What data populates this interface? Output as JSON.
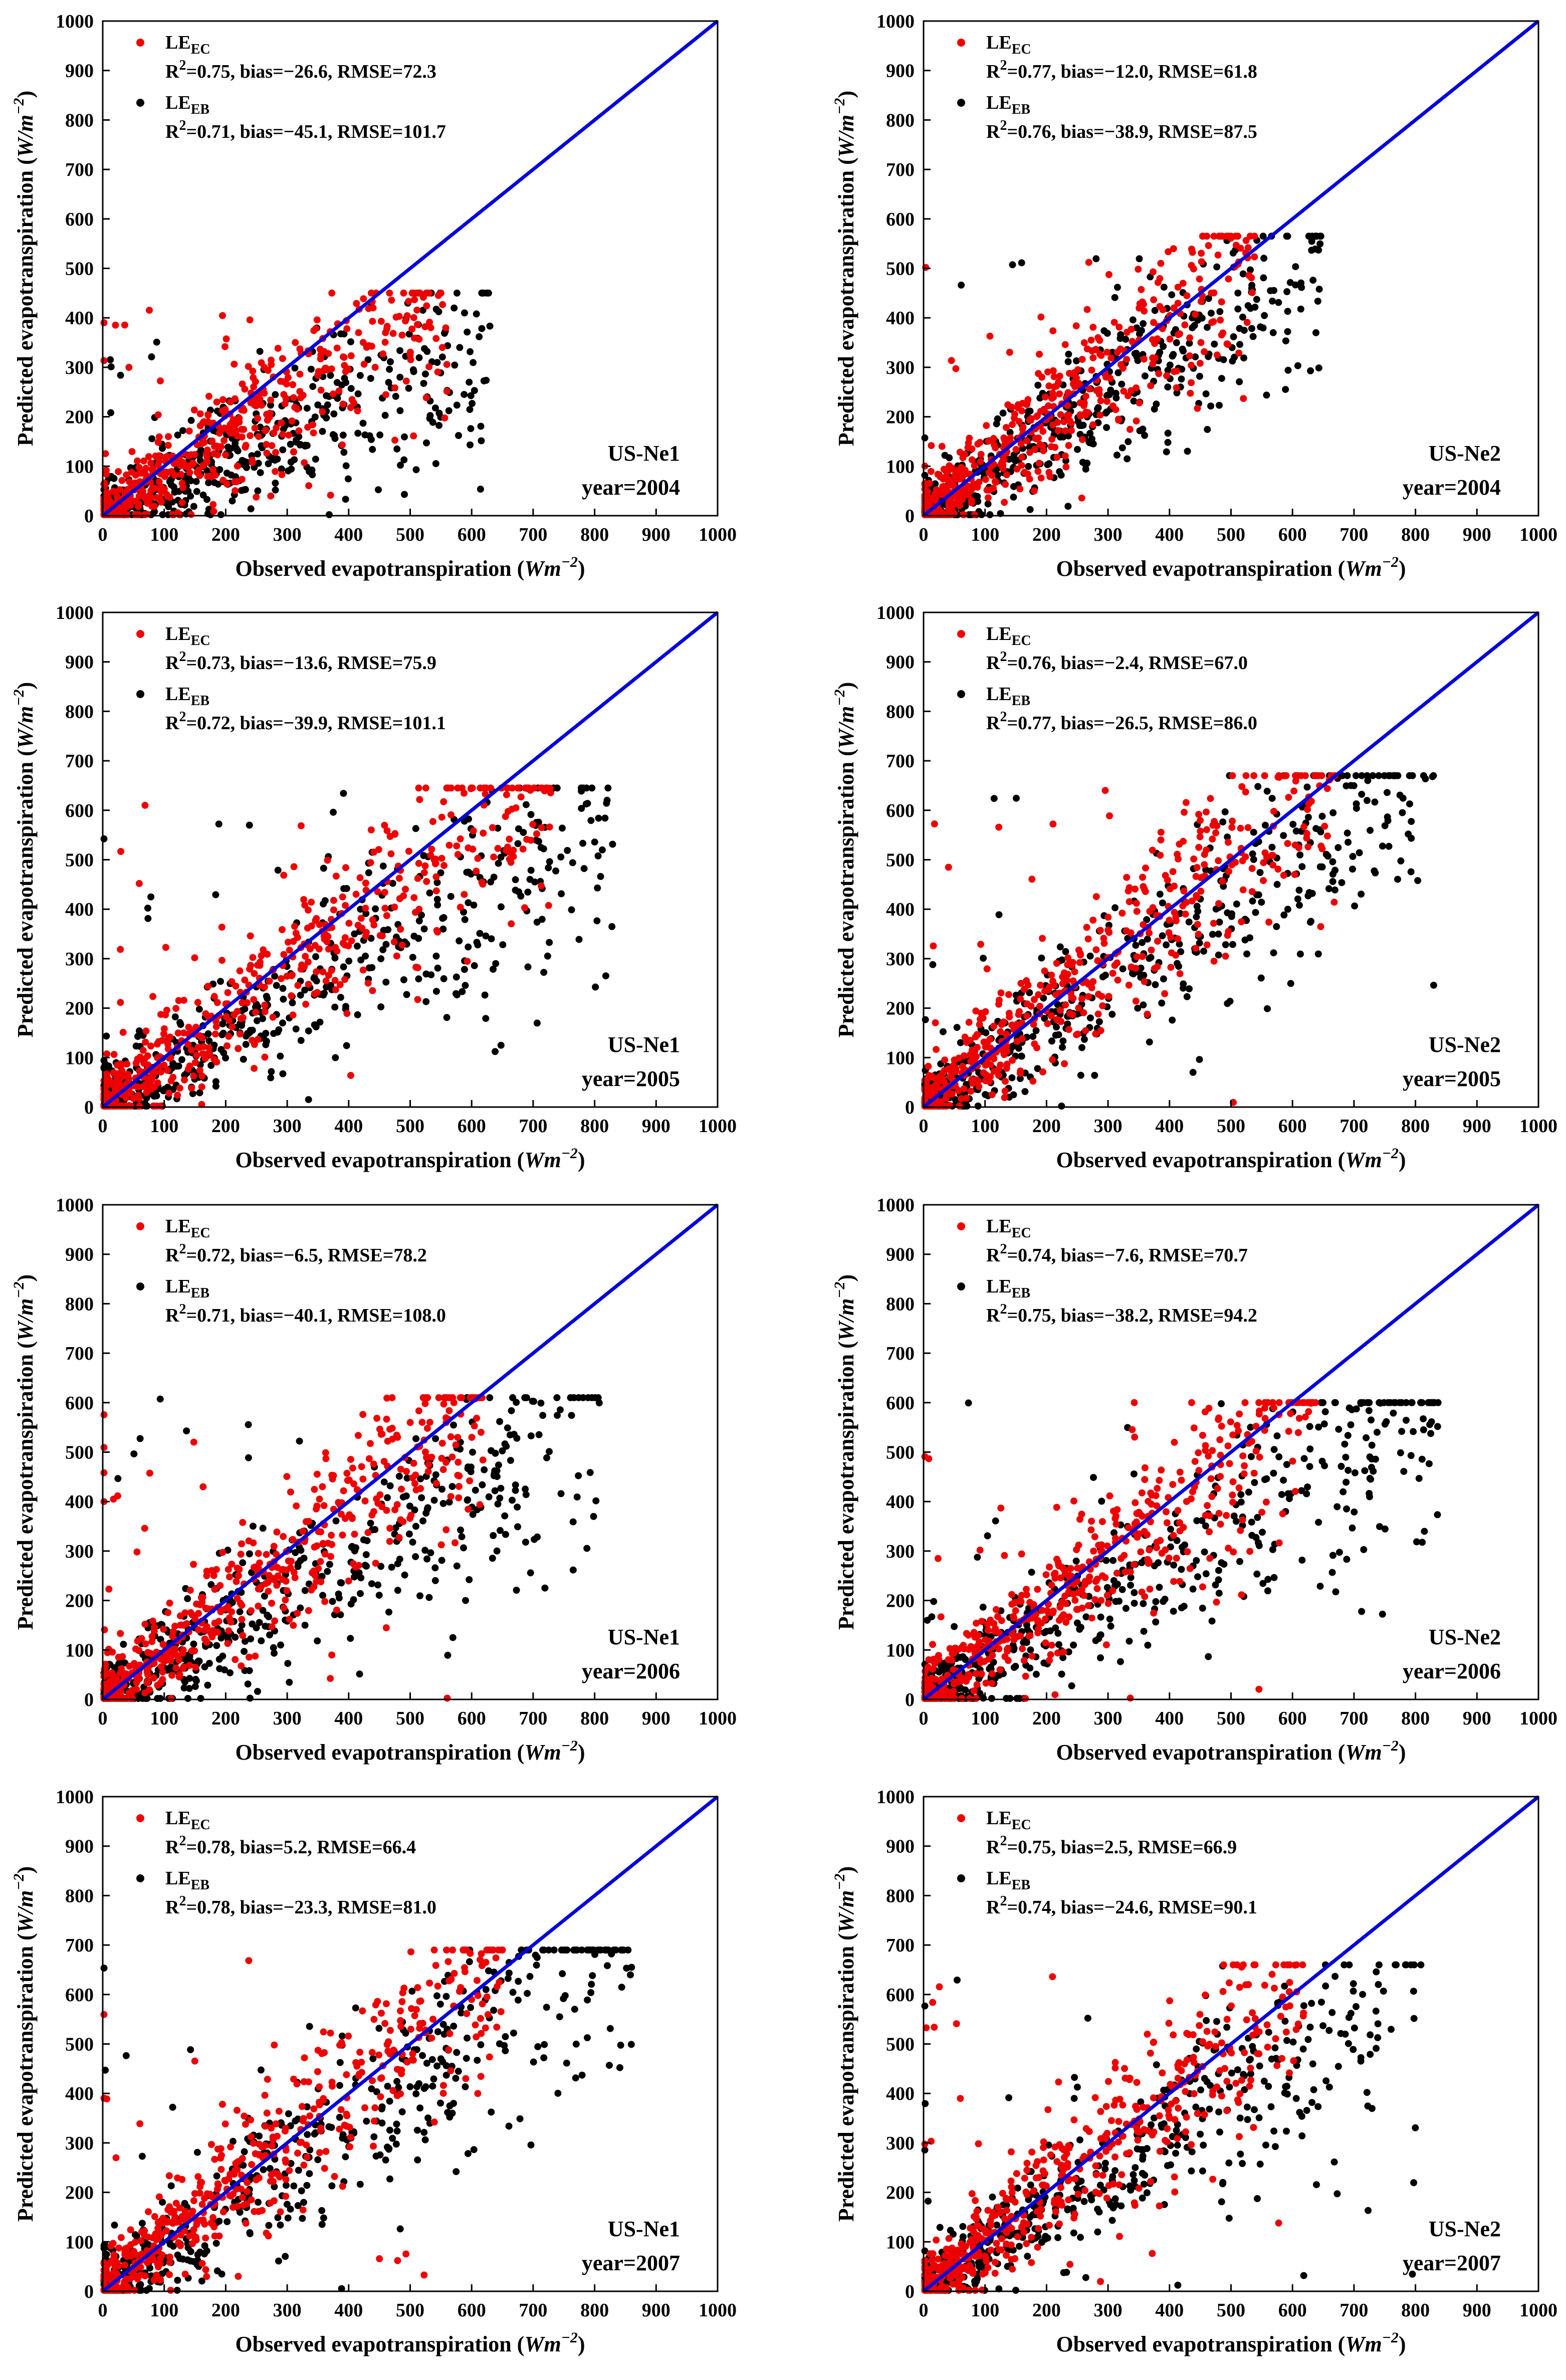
{
  "colors": {
    "ec": "#ee0000",
    "eb": "#000000",
    "one_to_one": "#0000dd"
  },
  "chart_data": [
    {
      "type": "scatter",
      "site": "US-Ne1",
      "year_label": "year=2004",
      "xlabel": "Observed evapotranspiration",
      "xunit": "Wm",
      "ylabel": "Predicted evapotranspiration",
      "yunit": "W/m",
      "unit_exp": "−2",
      "xlim": [
        0,
        1000
      ],
      "ylim": [
        0,
        1000
      ],
      "ticks": [
        0,
        100,
        200,
        300,
        400,
        500,
        600,
        700,
        800,
        900,
        1000
      ],
      "series": [
        {
          "name": "LE",
          "sub": "EC",
          "stats": "=0.75, bias=−26.6, RMSE=72.3",
          "stats_r2": "R",
          "stats_sup": "2",
          "slope": 0.78,
          "xmax": 560,
          "ymax": 450
        },
        {
          "name": "LE",
          "sub": "EB",
          "stats": "=0.71, bias=−45.1, RMSE=101.7",
          "stats_r2": "R",
          "stats_sup": "2",
          "slope": 0.58,
          "xmax": 630,
          "ymax": 450
        }
      ]
    },
    {
      "type": "scatter",
      "site": "US-Ne2",
      "year_label": "year=2004",
      "xlabel": "Observed evapotranspiration",
      "xunit": "Wm",
      "ylabel": "Predicted evapotranspiration",
      "yunit": "W/m",
      "unit_exp": "−2",
      "xlim": [
        0,
        1000
      ],
      "ylim": [
        0,
        1000
      ],
      "ticks": [
        0,
        100,
        200,
        300,
        400,
        500,
        600,
        700,
        800,
        900,
        1000
      ],
      "series": [
        {
          "name": "LE",
          "sub": "EC",
          "stats": "=0.77, bias=−12.0, RMSE=61.8",
          "stats_r2": "R",
          "stats_sup": "2",
          "slope": 0.97,
          "xmax": 540,
          "ymax": 565
        },
        {
          "name": "LE",
          "sub": "EB",
          "stats": "=0.76, bias=−38.9, RMSE=87.5",
          "stats_r2": "R",
          "stats_sup": "2",
          "slope": 0.8,
          "xmax": 650,
          "ymax": 565
        }
      ]
    },
    {
      "type": "scatter",
      "site": "US-Ne1",
      "year_label": "year=2005",
      "xlabel": "Observed evapotranspiration",
      "xunit": "Wm",
      "ylabel": "Predicted evapotranspiration",
      "yunit": "W/m",
      "unit_exp": "−2",
      "xlim": [
        0,
        1000
      ],
      "ylim": [
        0,
        1000
      ],
      "ticks": [
        0,
        100,
        200,
        300,
        400,
        500,
        600,
        700,
        800,
        900,
        1000
      ],
      "series": [
        {
          "name": "LE",
          "sub": "EC",
          "stats": "=0.73, bias=−13.6, RMSE=75.9",
          "stats_r2": "R",
          "stats_sup": "2",
          "slope": 0.93,
          "xmax": 730,
          "ymax": 645
        },
        {
          "name": "LE",
          "sub": "EB",
          "stats": "=0.72, bias=−39.9, RMSE=101.1",
          "stats_r2": "R",
          "stats_sup": "2",
          "slope": 0.72,
          "xmax": 830,
          "ymax": 645
        }
      ]
    },
    {
      "type": "scatter",
      "site": "US-Ne2",
      "year_label": "year=2005",
      "xlabel": "Observed evapotranspiration",
      "xunit": "Wm",
      "ylabel": "Predicted evapotranspiration",
      "yunit": "W/m",
      "unit_exp": "−2",
      "xlim": [
        0,
        1000
      ],
      "ylim": [
        0,
        1000
      ],
      "ticks": [
        0,
        100,
        200,
        300,
        400,
        500,
        600,
        700,
        800,
        900,
        1000
      ],
      "series": [
        {
          "name": "LE",
          "sub": "EC",
          "stats": "=0.76, bias=−2.4, RMSE=67.0",
          "stats_r2": "R",
          "stats_sup": "2",
          "slope": 1.0,
          "xmax": 670,
          "ymax": 670
        },
        {
          "name": "LE",
          "sub": "EB",
          "stats": "=0.77, bias=−26.5, RMSE=86.0",
          "stats_r2": "R",
          "stats_sup": "2",
          "slope": 0.83,
          "xmax": 830,
          "ymax": 670
        }
      ]
    },
    {
      "type": "scatter",
      "site": "US-Ne1",
      "year_label": "year=2006",
      "xlabel": "Observed evapotranspiration",
      "xunit": "Wm",
      "ylabel": "Predicted evapotranspiration",
      "yunit": "W/m",
      "unit_exp": "−2",
      "xlim": [
        0,
        1000
      ],
      "ylim": [
        0,
        1000
      ],
      "ticks": [
        0,
        100,
        200,
        300,
        400,
        500,
        600,
        700,
        800,
        900,
        1000
      ],
      "series": [
        {
          "name": "LE",
          "sub": "EC",
          "stats": "=0.72, bias=−6.5, RMSE=78.2",
          "stats_r2": "R",
          "stats_sup": "2",
          "slope": 0.98,
          "xmax": 620,
          "ymax": 610
        },
        {
          "name": "LE",
          "sub": "EB",
          "stats": "=0.71, bias=−40.1, RMSE=108.0",
          "stats_r2": "R",
          "stats_sup": "2",
          "slope": 0.72,
          "xmax": 810,
          "ymax": 610
        }
      ]
    },
    {
      "type": "scatter",
      "site": "US-Ne2",
      "year_label": "year=2006",
      "xlabel": "Observed evapotranspiration",
      "xunit": "Wm",
      "ylabel": "Predicted evapotranspiration",
      "yunit": "W/m",
      "unit_exp": "−2",
      "xlim": [
        0,
        1000
      ],
      "ylim": [
        0,
        1000
      ],
      "ticks": [
        0,
        100,
        200,
        300,
        400,
        500,
        600,
        700,
        800,
        900,
        1000
      ],
      "series": [
        {
          "name": "LE",
          "sub": "EC",
          "stats": "=0.74, bias=−7.6, RMSE=70.7",
          "stats_r2": "R",
          "stats_sup": "2",
          "slope": 0.98,
          "xmax": 640,
          "ymax": 600
        },
        {
          "name": "LE",
          "sub": "EB",
          "stats": "=0.75, bias=−38.2, RMSE=94.2",
          "stats_r2": "R",
          "stats_sup": "2",
          "slope": 0.72,
          "xmax": 840,
          "ymax": 600
        }
      ]
    },
    {
      "type": "scatter",
      "site": "US-Ne1",
      "year_label": "year=2007",
      "xlabel": "Observed evapotranspiration",
      "xunit": "Wm",
      "ylabel": "Predicted evapotranspiration",
      "yunit": "W/m",
      "unit_exp": "−2",
      "xlim": [
        0,
        1000
      ],
      "ylim": [
        0,
        1000
      ],
      "ticks": [
        0,
        100,
        200,
        300,
        400,
        500,
        600,
        700,
        800,
        900,
        1000
      ],
      "series": [
        {
          "name": "LE",
          "sub": "EC",
          "stats": "=0.78, bias=5.2, RMSE=66.4",
          "stats_r2": "R",
          "stats_sup": "2",
          "slope": 1.05,
          "xmax": 650,
          "ymax": 690
        },
        {
          "name": "LE",
          "sub": "EB",
          "stats": "=0.78, bias=−23.3, RMSE=81.0",
          "stats_r2": "R",
          "stats_sup": "2",
          "slope": 0.84,
          "xmax": 860,
          "ymax": 690
        }
      ]
    },
    {
      "type": "scatter",
      "site": "US-Ne2",
      "year_label": "year=2007",
      "xlabel": "Observed evapotranspiration",
      "xunit": "Wm",
      "ylabel": "Predicted evapotranspiration",
      "yunit": "W/m",
      "unit_exp": "−2",
      "xlim": [
        0,
        1000
      ],
      "ylim": [
        0,
        1000
      ],
      "ticks": [
        0,
        100,
        200,
        300,
        400,
        500,
        600,
        700,
        800,
        900,
        1000
      ],
      "series": [
        {
          "name": "LE",
          "sub": "EC",
          "stats": "=0.75, bias=2.5, RMSE=66.9",
          "stats_r2": "R",
          "stats_sup": "2",
          "slope": 1.0,
          "xmax": 620,
          "ymax": 660
        },
        {
          "name": "LE",
          "sub": "EB",
          "stats": "=0.74, bias=−24.6, RMSE=90.1",
          "stats_r2": "R",
          "stats_sup": "2",
          "slope": 0.8,
          "xmax": 810,
          "ymax": 660
        }
      ]
    }
  ]
}
